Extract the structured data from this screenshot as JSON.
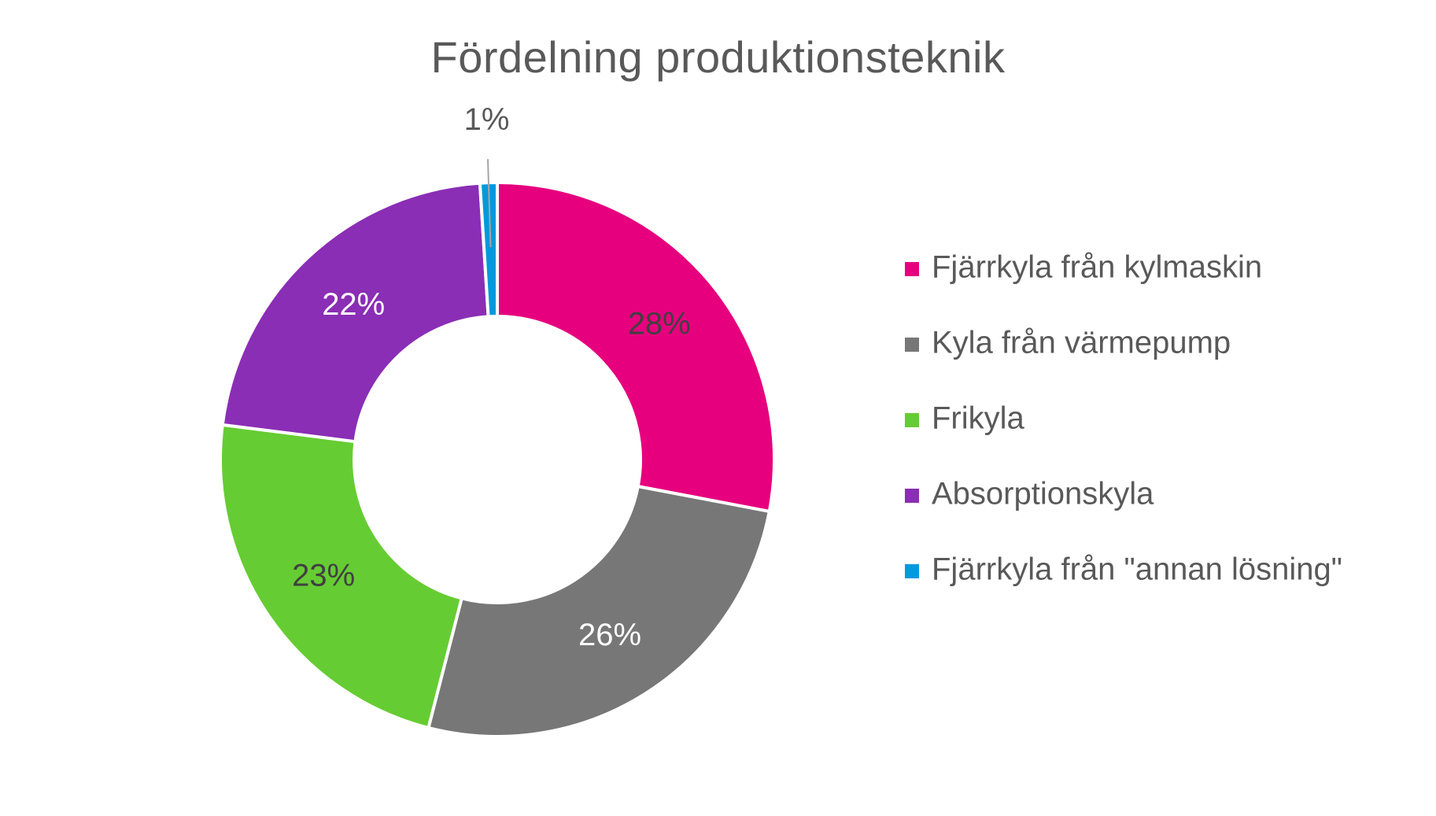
{
  "chart_data": {
    "type": "pie",
    "variant": "doughnut",
    "title": "Fördelning produktionsteknik",
    "categories": [
      "Fjärrkyla från kylmaskin",
      "Kyla från värmepump",
      "Frikyla",
      "Absorptionskyla",
      "Fjärrkyla från \"annan lösning\""
    ],
    "values": [
      28,
      26,
      23,
      22,
      1
    ],
    "data_labels": [
      "28%",
      "26%",
      "23%",
      "22%",
      "1%"
    ],
    "colors": [
      "#e6007e",
      "#777777",
      "#66cc33",
      "#8a2eb5",
      "#0099dd"
    ],
    "label_colors": [
      "#404040",
      "#ffffff",
      "#404040",
      "#ffffff",
      "#404040"
    ],
    "legend_position": "right"
  }
}
